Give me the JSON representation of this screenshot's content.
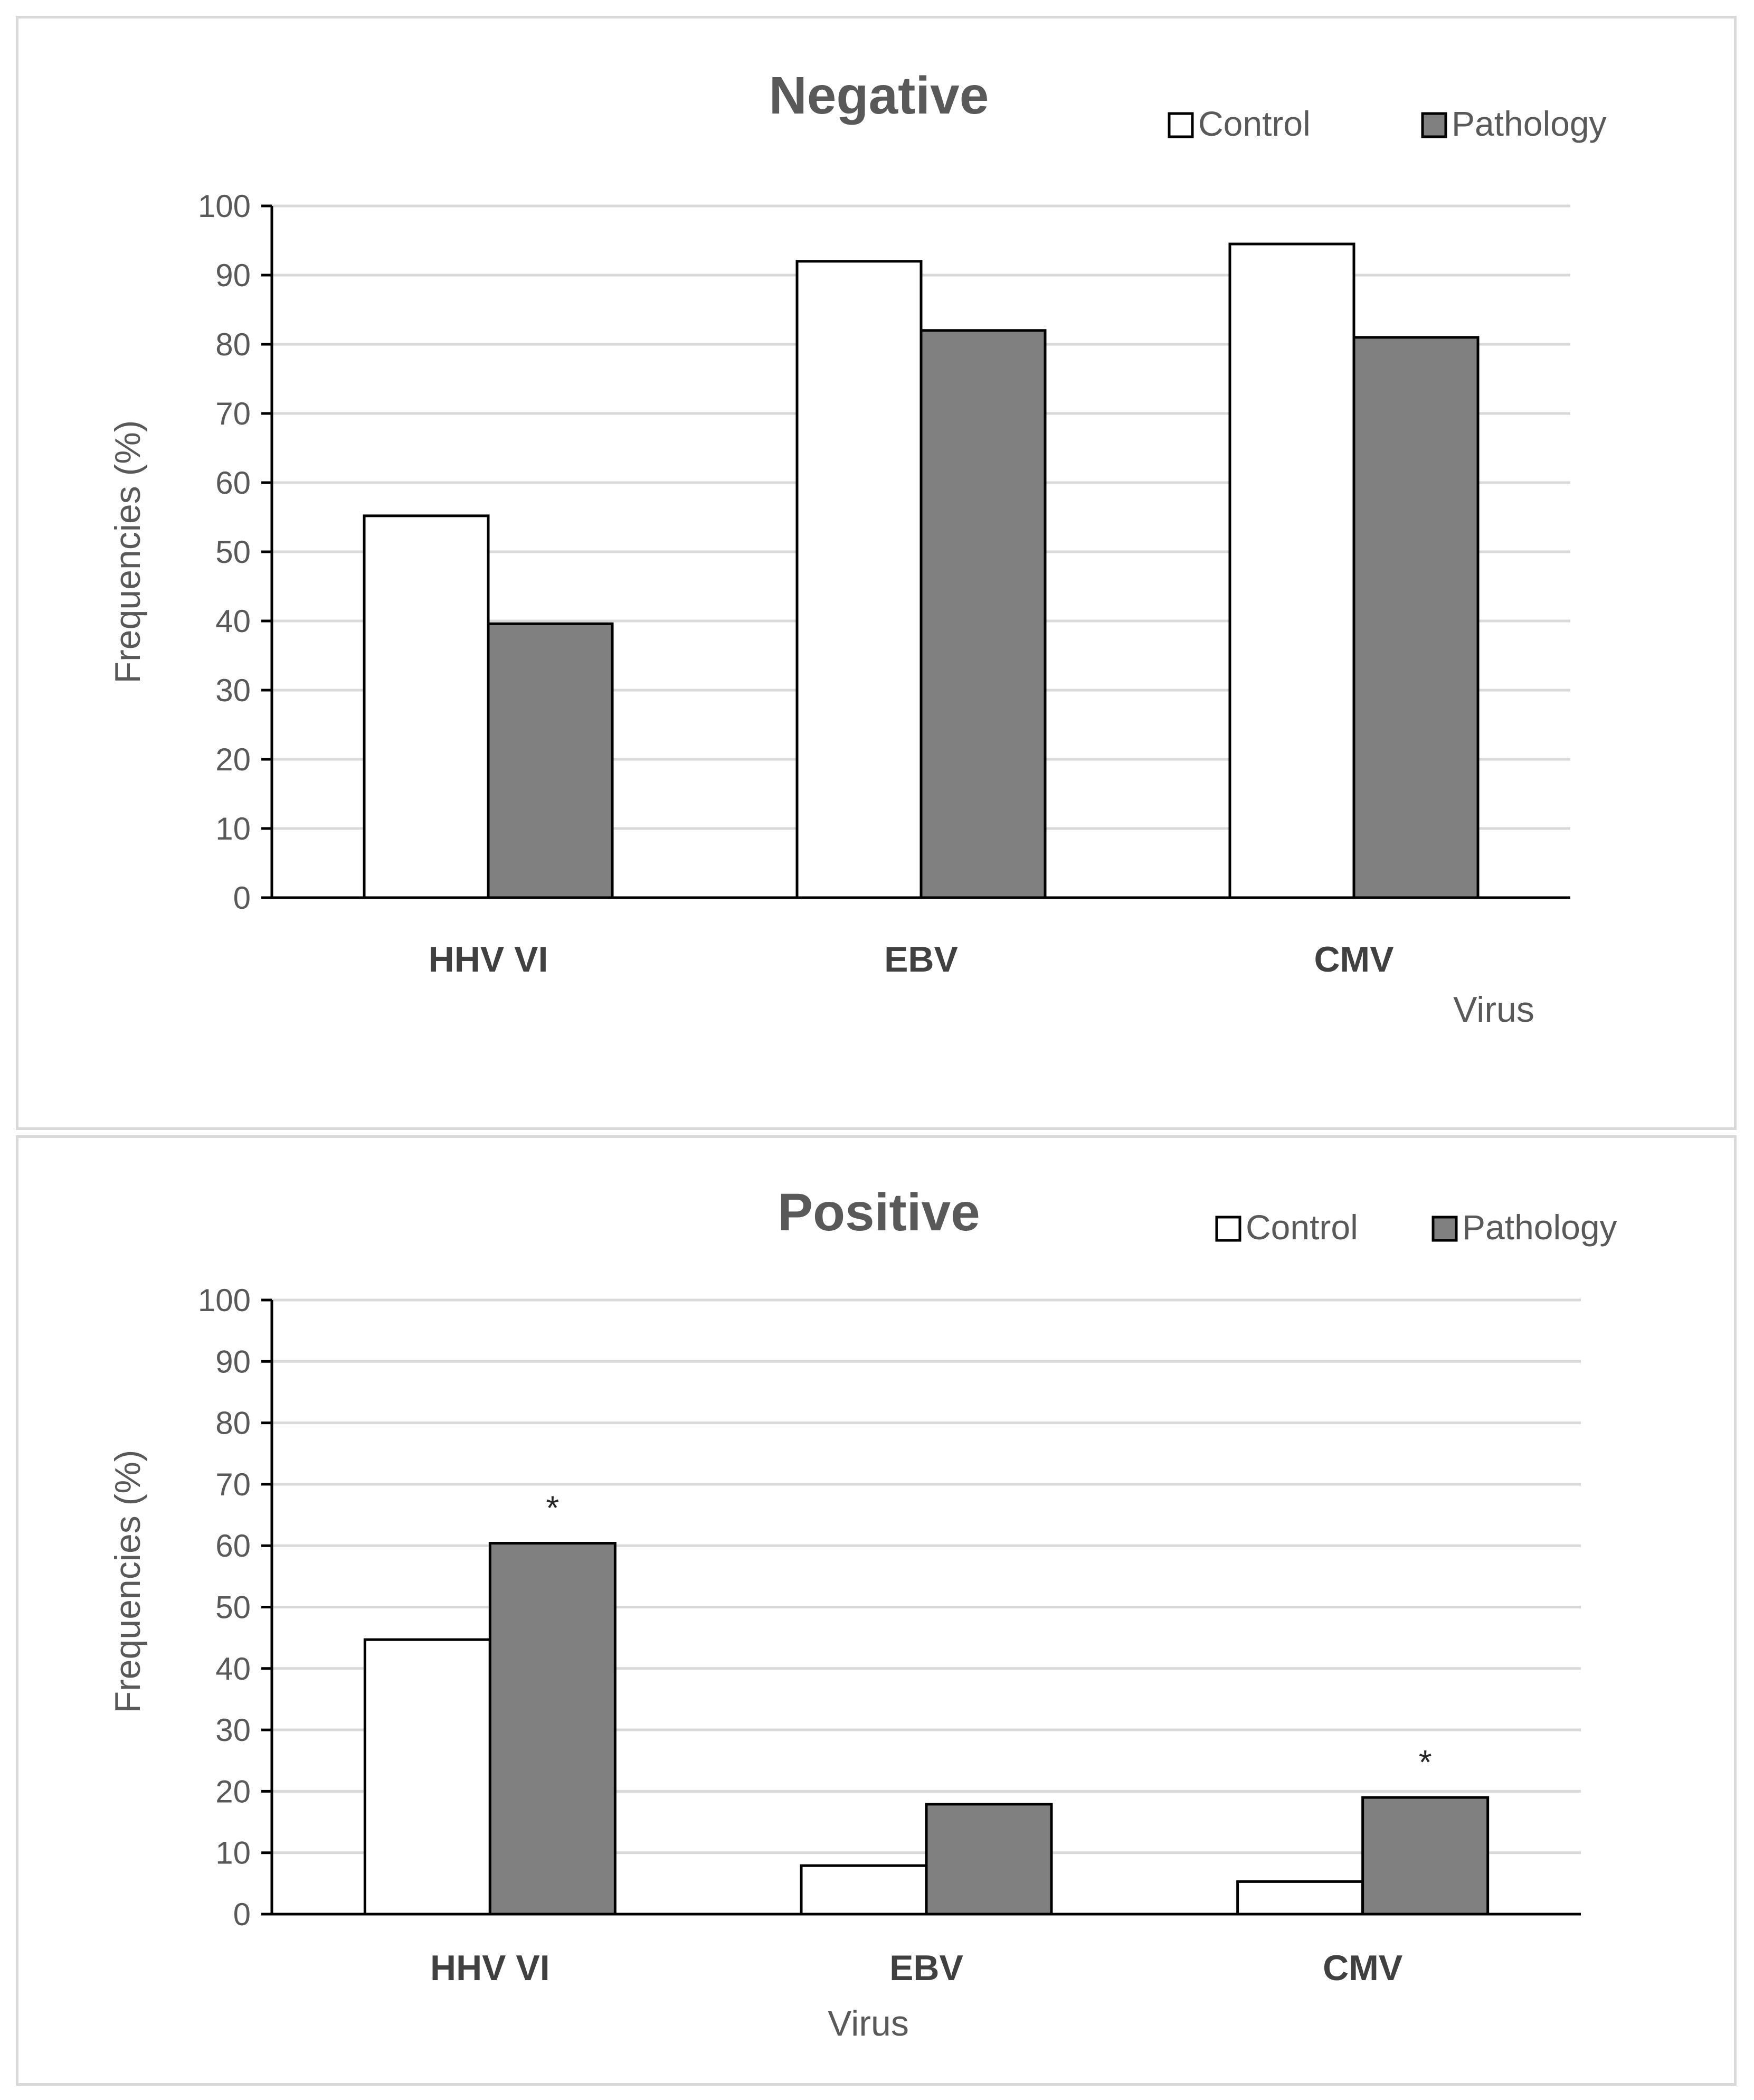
{
  "chart_data": [
    {
      "type": "bar",
      "title": "Negative",
      "categories": [
        "HHV VI",
        "EBV",
        "CMV"
      ],
      "series": [
        {
          "name": "Control",
          "values": [
            55.2,
            92.0,
            94.5
          ],
          "color": "#ffffff"
        },
        {
          "name": "Pathology",
          "values": [
            39.6,
            82.0,
            81.0
          ],
          "color": "#808080"
        }
      ],
      "annotations": [],
      "xlabel": "Virus",
      "ylabel": "Frequencies (%)",
      "ylim": [
        0,
        100
      ],
      "yticks": [
        "0",
        "10",
        "20",
        "30",
        "40",
        "50",
        "60",
        "70",
        "80",
        "90",
        "100"
      ],
      "grid": true,
      "legend": "top-right"
    },
    {
      "type": "bar",
      "title": "Positive",
      "categories": [
        "HHV VI",
        "EBV",
        "CMV"
      ],
      "series": [
        {
          "name": "Control",
          "values": [
            44.7,
            7.9,
            5.3
          ],
          "color": "#ffffff"
        },
        {
          "name": "Pathology",
          "values": [
            60.4,
            17.9,
            19.0
          ],
          "color": "#808080"
        }
      ],
      "annotations": [
        {
          "category_index": 0,
          "series_index": 1,
          "text": "*"
        },
        {
          "category_index": 2,
          "series_index": 1,
          "text": "*"
        }
      ],
      "xlabel": "Virus",
      "ylabel": "Frequencies (%)",
      "ylim": [
        0,
        100
      ],
      "yticks": [
        "0",
        "10",
        "20",
        "30",
        "40",
        "50",
        "60",
        "70",
        "80",
        "90",
        "100"
      ],
      "grid": true,
      "legend": "top-right"
    }
  ]
}
